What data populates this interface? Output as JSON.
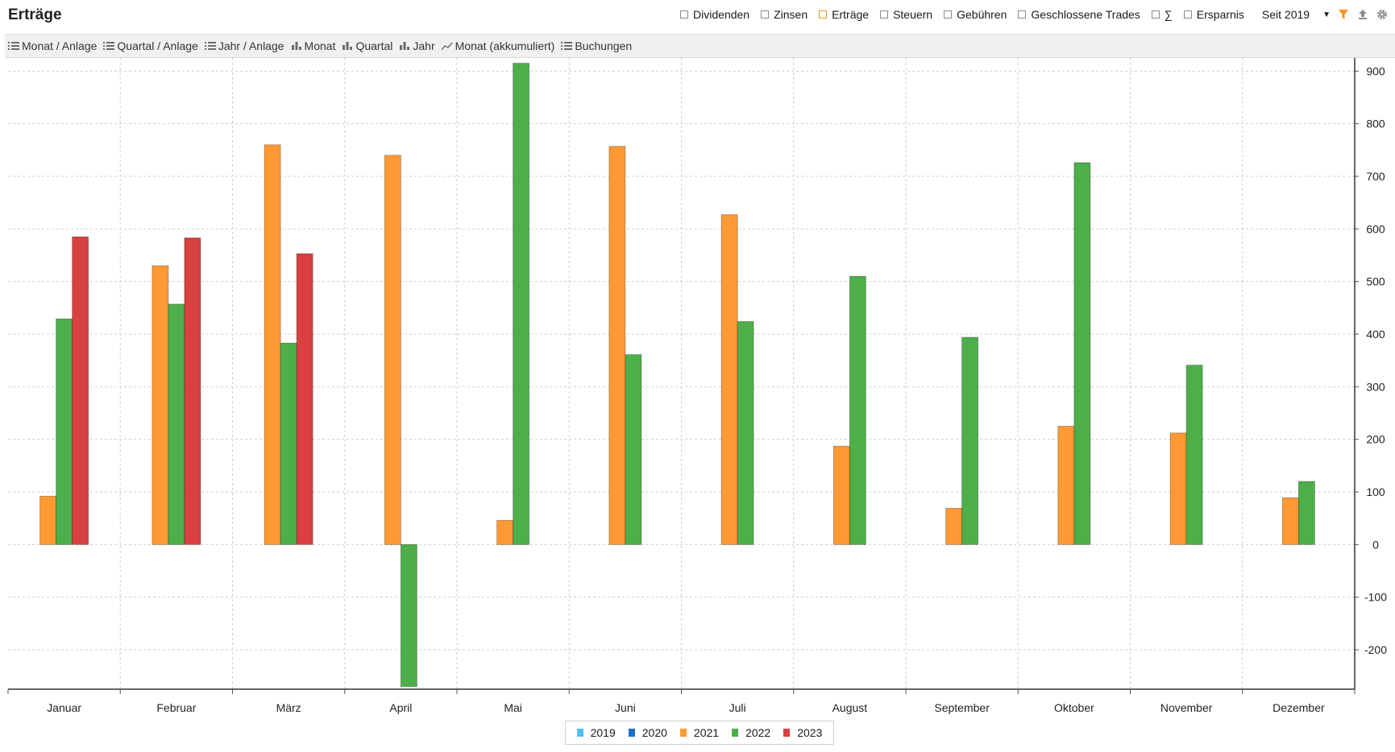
{
  "header": {
    "title": "Erträge",
    "filters": [
      {
        "label": "Dividenden",
        "checked": false
      },
      {
        "label": "Zinsen",
        "checked": false
      },
      {
        "label": "Erträge",
        "checked": true
      },
      {
        "label": "Steuern",
        "checked": false
      },
      {
        "label": "Gebühren",
        "checked": false
      },
      {
        "label": "Geschlossene Trades",
        "checked": false
      },
      {
        "label": "∑",
        "checked": false
      },
      {
        "label": "Ersparnis",
        "checked": false
      }
    ],
    "period": "Seit 2019",
    "icons": [
      "filter-icon",
      "export-icon",
      "settings-icon"
    ],
    "accent": "#f7931e"
  },
  "toolbar": {
    "items": [
      {
        "label": "Monat / Anlage",
        "icon": "list-icon"
      },
      {
        "label": "Quartal / Anlage",
        "icon": "list-icon"
      },
      {
        "label": "Jahr / Anlage",
        "icon": "list-icon"
      },
      {
        "label": "Monat",
        "icon": "bar-chart-icon",
        "active": true
      },
      {
        "label": "Quartal",
        "icon": "bar-chart-icon"
      },
      {
        "label": "Jahr",
        "icon": "bar-chart-icon"
      },
      {
        "label": "Monat (akkumuliert)",
        "icon": "line-chart-icon"
      },
      {
        "label": "Buchungen",
        "icon": "list-icon"
      }
    ]
  },
  "chart_data": {
    "type": "bar",
    "categories": [
      "Januar",
      "Februar",
      "März",
      "April",
      "Mai",
      "Juni",
      "Juli",
      "August",
      "September",
      "Oktober",
      "November",
      "Dezember"
    ],
    "series": [
      {
        "name": "2019",
        "color": "#4fc3f7",
        "values": [
          null,
          null,
          null,
          null,
          null,
          null,
          null,
          null,
          null,
          null,
          null,
          null
        ]
      },
      {
        "name": "2020",
        "color": "#1f6fbf",
        "values": [
          null,
          null,
          null,
          null,
          null,
          null,
          null,
          null,
          null,
          null,
          null,
          null
        ]
      },
      {
        "name": "2021",
        "color": "#ff9933",
        "values": [
          92,
          530,
          760,
          740,
          46,
          757,
          627,
          187,
          69,
          225,
          212,
          89
        ]
      },
      {
        "name": "2022",
        "color": "#4daf4a",
        "values": [
          429,
          457,
          383,
          -270,
          915,
          361,
          424,
          510,
          394,
          726,
          341,
          120
        ]
      },
      {
        "name": "2023",
        "color": "#d94040",
        "values": [
          585,
          583,
          553,
          null,
          null,
          null,
          null,
          null,
          null,
          null,
          null,
          null
        ]
      }
    ],
    "ylim": [
      -275,
      925
    ],
    "yticks": [
      900,
      800,
      700,
      600,
      500,
      400,
      300,
      200,
      100,
      0,
      -100,
      -200
    ],
    "y_axis_side": "right",
    "grid": true,
    "legend_position": "bottom-center"
  }
}
